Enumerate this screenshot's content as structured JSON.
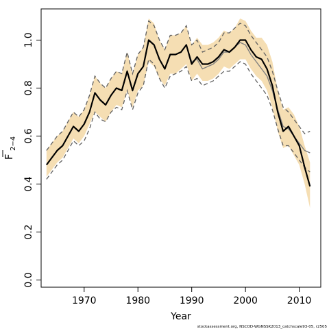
{
  "chart_data": {
    "type": "line",
    "xlabel": "Year",
    "ylabel": "F",
    "ylabel_subscript": "2−4",
    "credit": "stockassessment.org, NSCOD-WGNSSK2013_catchscale93-05, r2505",
    "xlim": [
      1962,
      2014
    ],
    "ylim": [
      -0.03,
      1.13
    ],
    "x_ticks": [
      1970,
      1980,
      1990,
      2000,
      2010
    ],
    "y_ticks": [
      0.0,
      0.2,
      0.4,
      0.6,
      0.8,
      1.0
    ],
    "x_tick_labels": [
      "1970",
      "1980",
      "1990",
      "2000",
      "2010"
    ],
    "y_tick_labels": [
      "0.0",
      "0.2",
      "0.4",
      "0.6",
      "0.8",
      "1.0"
    ],
    "colors": {
      "band": "#f5deb3",
      "main": "#000000",
      "previous": "#808080",
      "previous_ci": "#606060"
    },
    "x": [
      1963,
      1964,
      1965,
      1966,
      1967,
      1968,
      1969,
      1970,
      1971,
      1972,
      1973,
      1974,
      1975,
      1976,
      1977,
      1978,
      1979,
      1980,
      1981,
      1982,
      1983,
      1984,
      1985,
      1986,
      1987,
      1988,
      1989,
      1990,
      1991,
      1992,
      1993,
      1994,
      1995,
      1996,
      1997,
      1998,
      1999,
      2000,
      2001,
      2002,
      2003,
      2004,
      2005,
      2006,
      2007,
      2008,
      2009,
      2010,
      2011,
      2012
    ],
    "series": [
      {
        "name": "estimate",
        "role": "main",
        "values": [
          0.48,
          0.51,
          0.54,
          0.56,
          0.6,
          0.64,
          0.62,
          0.65,
          0.7,
          0.78,
          0.75,
          0.73,
          0.77,
          0.8,
          0.79,
          0.87,
          0.79,
          0.86,
          0.89,
          1.0,
          0.98,
          0.92,
          0.88,
          0.94,
          0.94,
          0.95,
          0.98,
          0.9,
          0.93,
          0.9,
          0.9,
          0.91,
          0.93,
          0.96,
          0.95,
          0.97,
          1.0,
          1.0,
          0.96,
          0.93,
          0.92,
          0.88,
          0.81,
          0.7,
          0.62,
          0.64,
          0.6,
          0.56,
          0.47,
          0.39
        ]
      },
      {
        "name": "lower",
        "role": "band_low",
        "values": [
          0.43,
          0.46,
          0.49,
          0.51,
          0.55,
          0.59,
          0.57,
          0.6,
          0.65,
          0.7,
          0.68,
          0.66,
          0.7,
          0.73,
          0.72,
          0.79,
          0.72,
          0.79,
          0.81,
          0.91,
          0.89,
          0.84,
          0.81,
          0.86,
          0.86,
          0.88,
          0.9,
          0.83,
          0.86,
          0.83,
          0.83,
          0.84,
          0.86,
          0.89,
          0.88,
          0.9,
          0.92,
          0.92,
          0.88,
          0.85,
          0.83,
          0.79,
          0.72,
          0.62,
          0.55,
          0.56,
          0.52,
          0.48,
          0.4,
          0.3
        ]
      },
      {
        "name": "upper",
        "role": "band_high",
        "values": [
          0.54,
          0.57,
          0.6,
          0.62,
          0.66,
          0.7,
          0.68,
          0.71,
          0.77,
          0.85,
          0.82,
          0.8,
          0.84,
          0.87,
          0.86,
          0.95,
          0.86,
          0.94,
          0.97,
          1.09,
          1.07,
          1.0,
          0.96,
          1.02,
          1.02,
          1.03,
          1.06,
          0.98,
          1.01,
          0.98,
          0.98,
          0.99,
          1.01,
          1.04,
          1.03,
          1.05,
          1.09,
          1.08,
          1.04,
          1.01,
          1.01,
          0.98,
          0.91,
          0.79,
          0.71,
          0.72,
          0.69,
          0.64,
          0.56,
          0.49
        ]
      },
      {
        "name": "previous",
        "role": "previous",
        "values": [
          0.48,
          0.51,
          0.54,
          0.56,
          0.6,
          0.64,
          0.62,
          0.65,
          0.7,
          0.78,
          0.75,
          0.73,
          0.77,
          0.8,
          0.79,
          0.87,
          0.79,
          0.86,
          0.89,
          1.0,
          0.98,
          0.92,
          0.88,
          0.94,
          0.94,
          0.95,
          0.98,
          0.91,
          0.92,
          0.88,
          0.89,
          0.9,
          0.92,
          0.95,
          0.95,
          0.97,
          0.99,
          0.98,
          0.94,
          0.91,
          0.88,
          0.85,
          0.79,
          0.71,
          0.64,
          0.63,
          0.6,
          0.57,
          0.54,
          0.53
        ]
      },
      {
        "name": "previous lower",
        "role": "previous_low",
        "values": [
          0.42,
          0.45,
          0.48,
          0.5,
          0.54,
          0.58,
          0.56,
          0.58,
          0.63,
          0.7,
          0.67,
          0.66,
          0.7,
          0.72,
          0.71,
          0.79,
          0.71,
          0.78,
          0.81,
          0.92,
          0.9,
          0.84,
          0.8,
          0.85,
          0.86,
          0.87,
          0.89,
          0.83,
          0.84,
          0.81,
          0.82,
          0.83,
          0.85,
          0.87,
          0.87,
          0.89,
          0.91,
          0.9,
          0.86,
          0.83,
          0.8,
          0.77,
          0.71,
          0.63,
          0.56,
          0.56,
          0.53,
          0.5,
          0.47,
          0.45
        ]
      },
      {
        "name": "previous upper",
        "role": "previous_high",
        "values": [
          0.54,
          0.57,
          0.6,
          0.62,
          0.66,
          0.7,
          0.68,
          0.71,
          0.77,
          0.85,
          0.82,
          0.8,
          0.84,
          0.87,
          0.86,
          0.95,
          0.86,
          0.94,
          0.97,
          1.08,
          1.06,
          1.0,
          0.96,
          1.02,
          1.02,
          1.03,
          1.06,
          0.98,
          1.0,
          0.95,
          0.96,
          0.97,
          0.99,
          1.03,
          1.03,
          1.05,
          1.07,
          1.06,
          1.02,
          0.99,
          0.96,
          0.93,
          0.87,
          0.79,
          0.72,
          0.7,
          0.67,
          0.64,
          0.61,
          0.62
        ]
      }
    ]
  }
}
